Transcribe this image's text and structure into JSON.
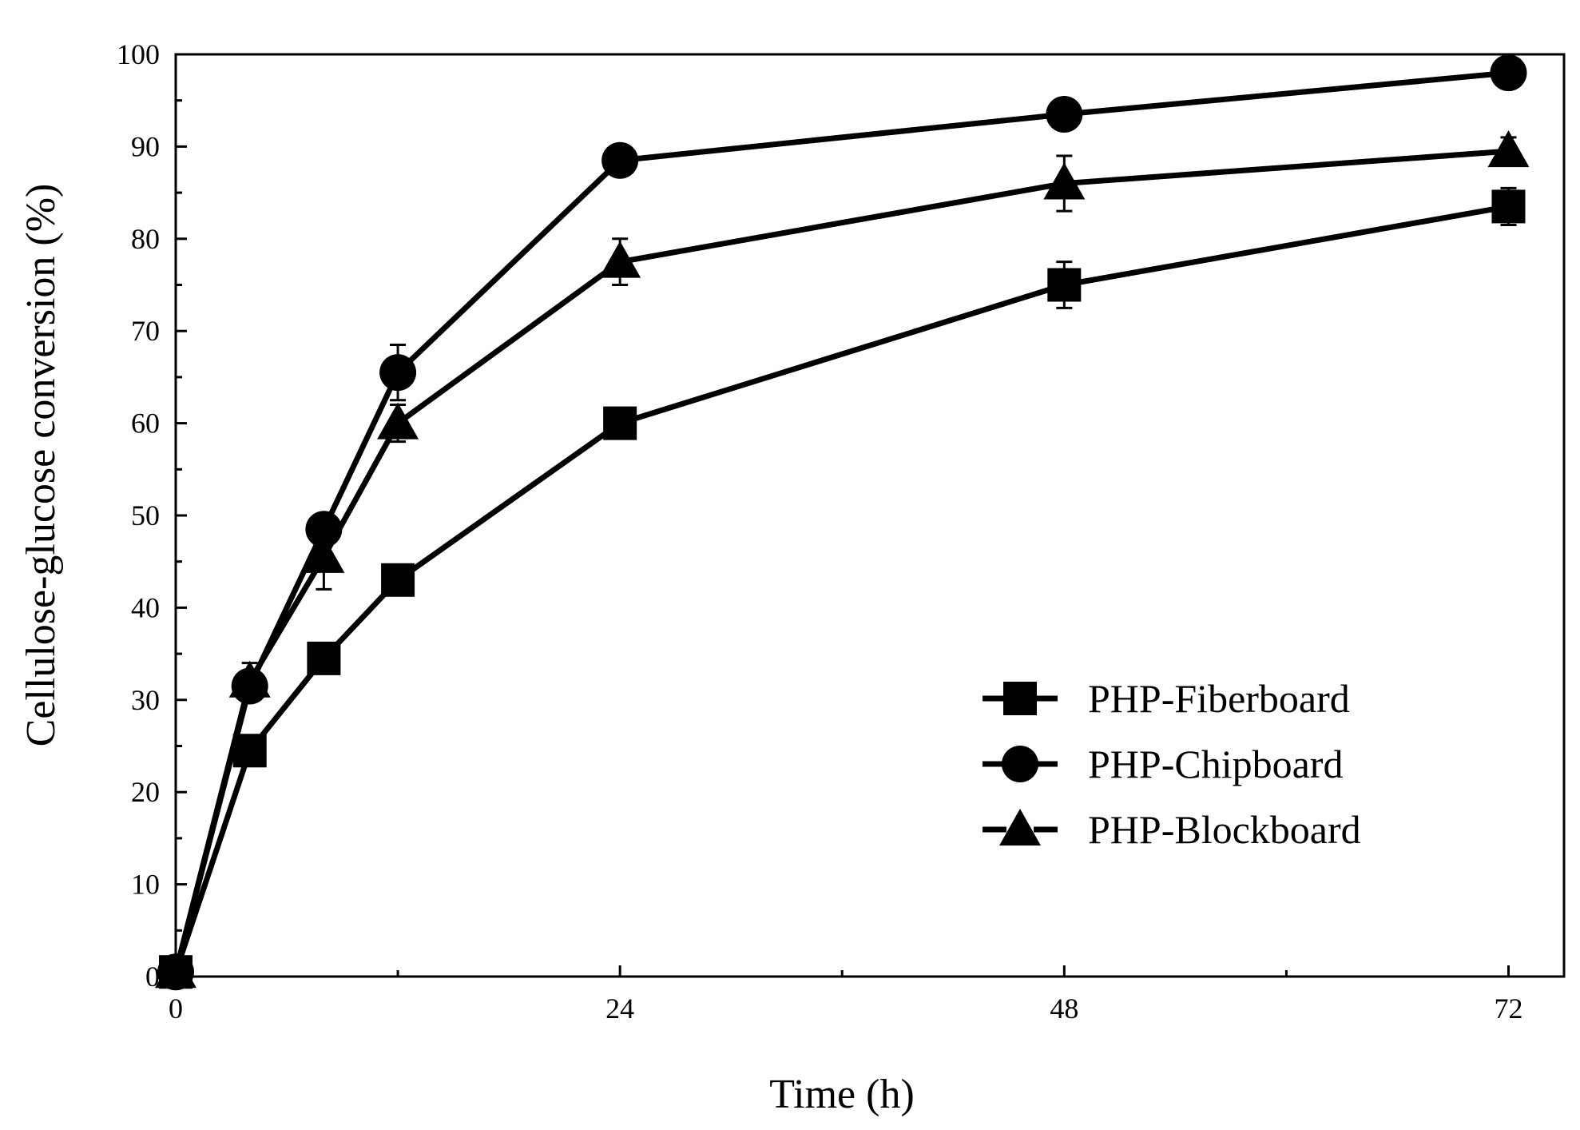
{
  "chart_data": {
    "type": "line",
    "title": "",
    "xlabel": "Time (h)",
    "ylabel": "Cellulose-glucose conversion (%)",
    "xlim": [
      0,
      75
    ],
    "ylim": [
      0,
      100
    ],
    "xticks": [
      0,
      24,
      48,
      72
    ],
    "xticks_minor": [
      12,
      36,
      60
    ],
    "yticks": [
      0,
      10,
      20,
      30,
      40,
      50,
      60,
      70,
      80,
      90,
      100
    ],
    "grid": false,
    "legend_position": "bottom-right",
    "x": [
      0,
      4,
      8,
      12,
      24,
      48,
      72
    ],
    "series": [
      {
        "name": "PHP-Fiberboard",
        "marker": "square",
        "values": [
          0.5,
          24.5,
          34.5,
          43.0,
          60.0,
          75.0,
          83.5
        ],
        "errors": [
          0.5,
          0.5,
          0.5,
          0.8,
          1.5,
          2.5,
          2.0
        ]
      },
      {
        "name": "PHP-Chipboard",
        "marker": "circle",
        "values": [
          0.5,
          31.5,
          48.5,
          65.5,
          88.5,
          93.5,
          98.0
        ],
        "errors": [
          0.5,
          1.5,
          1.0,
          3.0,
          0.8,
          0.8,
          0.8
        ]
      },
      {
        "name": "PHP-Blockboard",
        "marker": "triangle",
        "values": [
          0.5,
          32.0,
          45.5,
          60.0,
          77.5,
          86.0,
          89.5
        ],
        "errors": [
          0.5,
          2.0,
          3.5,
          2.0,
          2.5,
          3.0,
          1.5
        ]
      }
    ],
    "colors": {
      "line": "#000000",
      "marker": "#000000"
    }
  }
}
